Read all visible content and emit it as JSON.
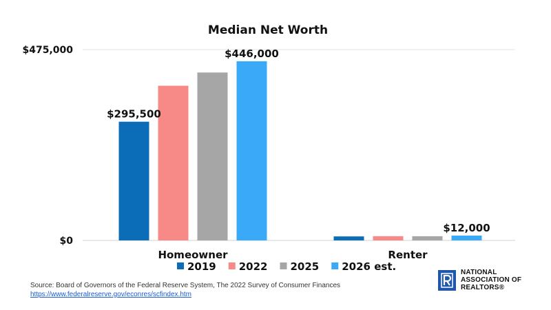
{
  "chart_data": {
    "type": "bar",
    "title": "Median Net Worth",
    "categories": [
      "Homeowner",
      "Renter"
    ],
    "series": [
      {
        "name": "2019",
        "color": "#0b6db8",
        "values": [
          295500,
          10000
        ]
      },
      {
        "name": "2022",
        "color": "#f78a86",
        "values": [
          385000,
          10500
        ]
      },
      {
        "name": "2025",
        "color": "#a6a6a6",
        "values": [
          418000,
          10500
        ]
      },
      {
        "name": "2026 est.",
        "color": "#3aaaf8",
        "values": [
          446000,
          12000
        ]
      }
    ],
    "ylim": [
      0,
      475000
    ],
    "yticks": [
      "$0",
      "$475,000"
    ],
    "data_labels": [
      {
        "series": 0,
        "category": 0,
        "text": "$295,500"
      },
      {
        "series": 3,
        "category": 0,
        "text": "$446,000"
      },
      {
        "series": 3,
        "category": 1,
        "text": "$12,000"
      }
    ],
    "legend": "bottom",
    "grid": true
  },
  "source": {
    "text": "Source: Board of Governors of the Federal Reserve System, The 2022 Survey of Consumer Finances",
    "link": "https://www.federalreserve.gov/econres/scfindex.htm"
  },
  "logo": {
    "line1": "NATIONAL",
    "line2": "ASSOCIATION OF",
    "line3": "REALTORS®",
    "icon": "realtor-r-icon",
    "color": "#1f58a8"
  }
}
